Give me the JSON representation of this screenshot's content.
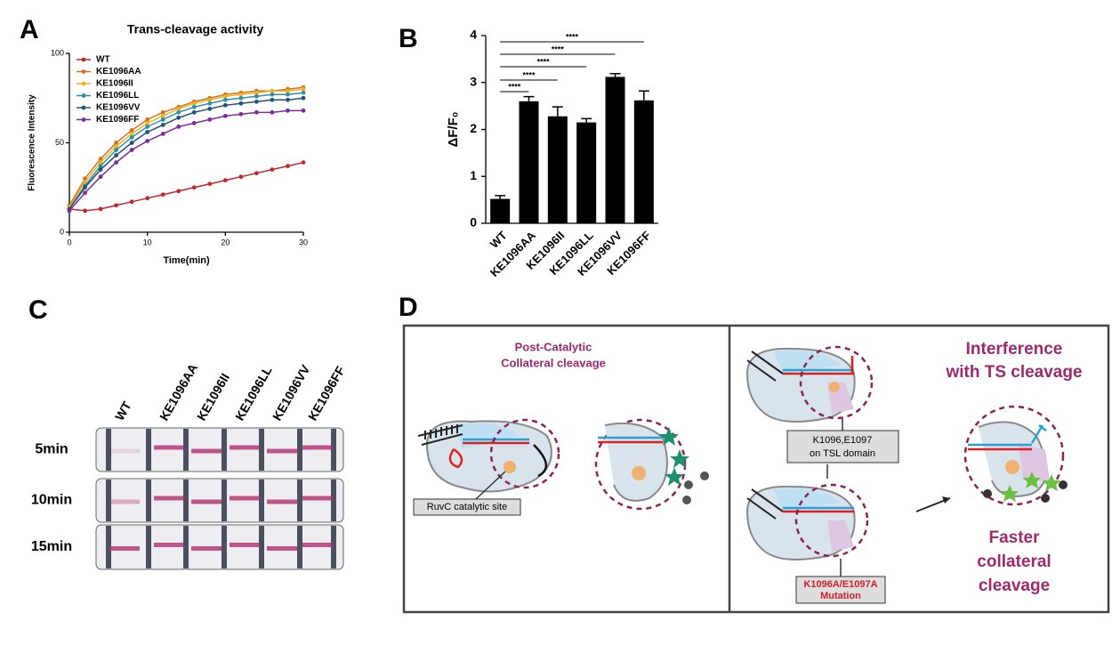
{
  "panel_labels": [
    "A",
    "B",
    "C",
    "D"
  ],
  "chart_data": [
    {
      "type": "line",
      "title": "Trans-cleavage activity",
      "x_label": "Time(min)",
      "y_label": "Fluorescence Intensity",
      "x": [
        0,
        2,
        4,
        6,
        8,
        10,
        12,
        14,
        16,
        18,
        20,
        22,
        24,
        26,
        28,
        30
      ],
      "xlim": [
        0,
        30
      ],
      "xticks": [
        0,
        10,
        20,
        30
      ],
      "ylim": [
        0,
        100
      ],
      "yticks": [
        0,
        50,
        100
      ],
      "legend": "top-left",
      "series": [
        {
          "name": "WT",
          "color": "#c0282d",
          "values": [
            13,
            12,
            13,
            15,
            17,
            19,
            21,
            23,
            25,
            27,
            29,
            31,
            33,
            35,
            37,
            39
          ]
        },
        {
          "name": "KE1096AA",
          "color": "#d9701e",
          "values": [
            15,
            30,
            41,
            50,
            57,
            63,
            67,
            70,
            73,
            75,
            77,
            78,
            79,
            79,
            80,
            81
          ]
        },
        {
          "name": "KE1096II",
          "color": "#e8b520",
          "values": [
            14,
            28,
            39,
            48,
            55,
            61,
            65,
            69,
            72,
            74,
            76,
            77,
            78,
            79,
            79,
            80
          ]
        },
        {
          "name": "KE1096LL",
          "color": "#2e8fa8",
          "values": [
            13,
            26,
            37,
            46,
            53,
            59,
            63,
            67,
            70,
            72,
            74,
            75,
            76,
            77,
            77,
            78
          ]
        },
        {
          "name": "KE1096VV",
          "color": "#25507a",
          "values": [
            13,
            25,
            35,
            43,
            50,
            56,
            60,
            64,
            67,
            69,
            71,
            72,
            73,
            74,
            74,
            75
          ]
        },
        {
          "name": "KE1096FF",
          "color": "#7a2c9a",
          "values": [
            12,
            22,
            31,
            39,
            46,
            51,
            55,
            59,
            61,
            63,
            65,
            66,
            67,
            67,
            68,
            68
          ]
        }
      ]
    },
    {
      "type": "bar",
      "y_label": "ΔF/F₀",
      "categories": [
        "WT",
        "KE1096AA",
        "KE1096II",
        "KE1096LL",
        "KE1096VV",
        "KE1096FF"
      ],
      "values": [
        0.52,
        2.6,
        2.28,
        2.15,
        3.12,
        2.62
      ],
      "errors": [
        0.07,
        0.1,
        0.2,
        0.08,
        0.07,
        0.2
      ],
      "color": "#000000",
      "ylim": [
        0,
        4
      ],
      "yticks": [
        0,
        1,
        2,
        3,
        4
      ],
      "comparisons": [
        {
          "pair": [
            0,
            1
          ],
          "label": "****"
        },
        {
          "pair": [
            0,
            2
          ],
          "label": "****"
        },
        {
          "pair": [
            0,
            3
          ],
          "label": "****"
        },
        {
          "pair": [
            0,
            4
          ],
          "label": "****"
        },
        {
          "pair": [
            0,
            5
          ],
          "label": "****"
        }
      ]
    }
  ],
  "panel_c": {
    "columns": [
      "WT",
      "KE1096AA",
      "KE1096II",
      "KE1096LL",
      "KE1096VV",
      "KE1096FF"
    ],
    "rows": [
      "5min",
      "10min",
      "15min"
    ]
  },
  "panel_d": {
    "left_title": [
      "Post-Catalytic",
      "Collateral cleavage"
    ],
    "ruvc_label": "RuvC catalytic site",
    "tsl_label": [
      "K1096,E1097",
      "on TSL domain"
    ],
    "mutation_label": [
      "K1096A/E1097A",
      "Mutation"
    ],
    "interference": [
      "Interference",
      "with TS cleavage"
    ],
    "faster": [
      "Faster",
      "collateral",
      "cleavage"
    ]
  }
}
